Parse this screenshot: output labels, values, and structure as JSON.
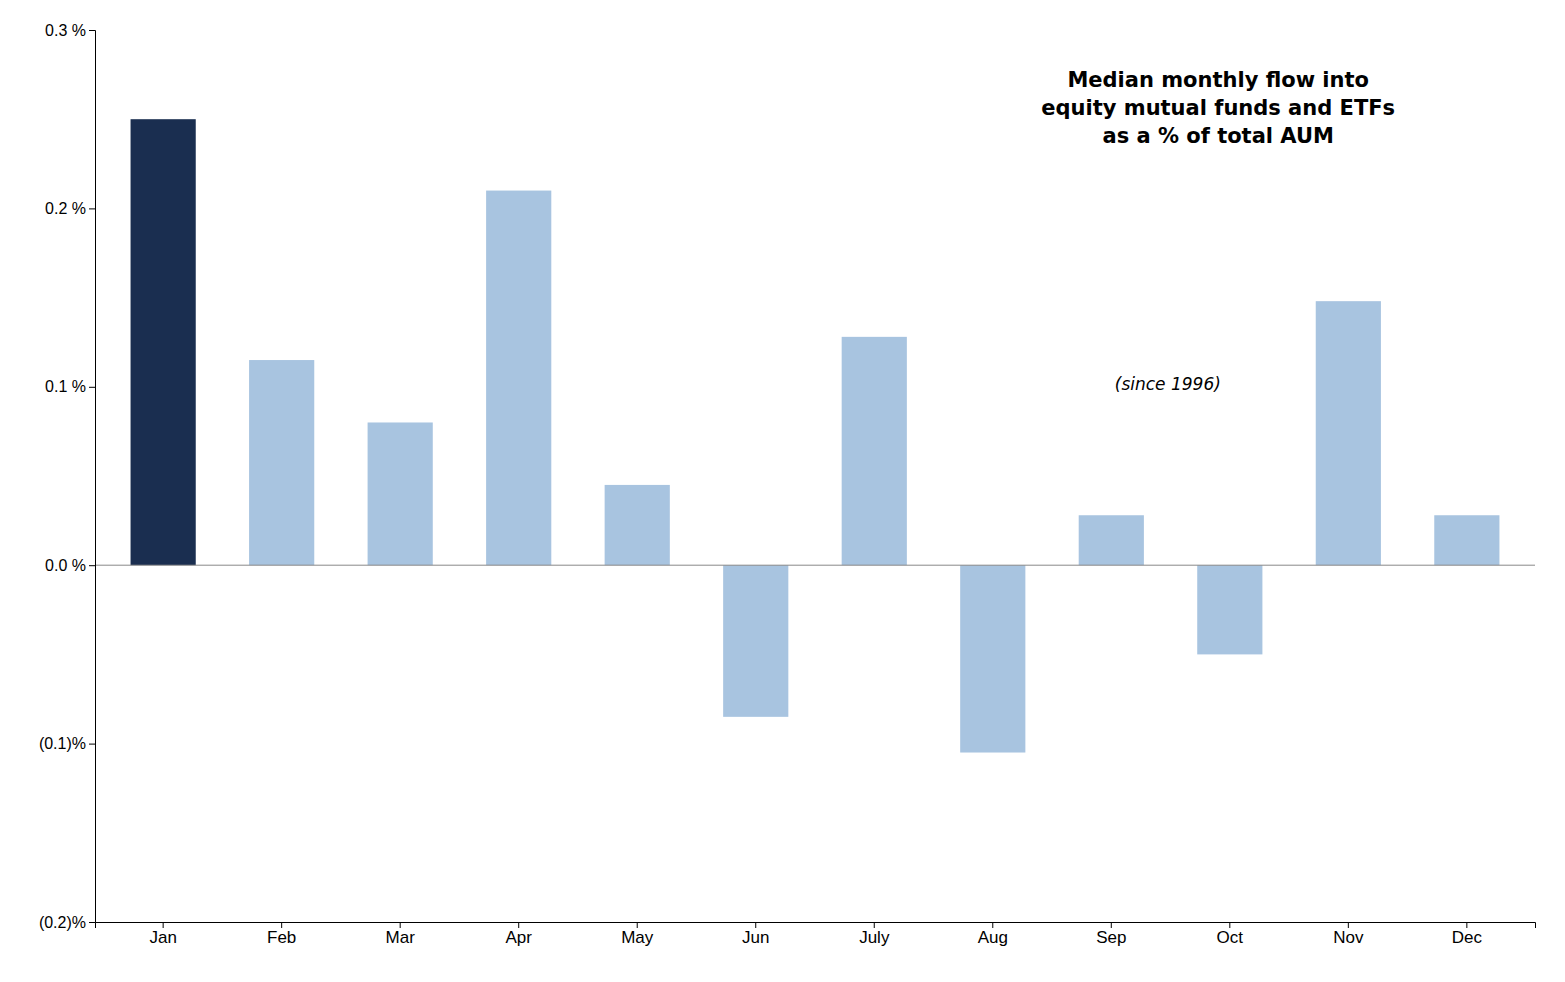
{
  "chart_data": {
    "type": "bar",
    "title": "Median monthly flow into\nequity mutual funds and ETFs\nas a % of total AUM",
    "subtitle": "(since 1996)",
    "categories": [
      "Jan",
      "Feb",
      "Mar",
      "Apr",
      "May",
      "Jun",
      "July",
      "Aug",
      "Sep",
      "Oct",
      "Nov",
      "Dec"
    ],
    "values": [
      0.0025,
      0.00115,
      0.0008,
      0.0021,
      0.00045,
      -0.00085,
      0.00128,
      -0.00105,
      0.00028,
      -0.0005,
      0.00148,
      0.00028
    ],
    "colors": [
      "#1a2e50",
      "#a8c4e0",
      "#a8c4e0",
      "#a8c4e0",
      "#a8c4e0",
      "#a8c4e0",
      "#a8c4e0",
      "#a8c4e0",
      "#a8c4e0",
      "#a8c4e0",
      "#a8c4e0",
      "#a8c4e0"
    ],
    "ylim": [
      -0.002,
      0.003
    ],
    "yticks": [
      {
        "value": -0.002,
        "label": "(0.2)%"
      },
      {
        "value": -0.001,
        "label": "(0.1)%"
      },
      {
        "value": 0.0,
        "label": "0.0 %"
      },
      {
        "value": 0.001,
        "label": "0.1 %"
      },
      {
        "value": 0.002,
        "label": "0.2 %"
      },
      {
        "value": 0.003,
        "label": "0.3 %"
      }
    ],
    "grid": false
  }
}
